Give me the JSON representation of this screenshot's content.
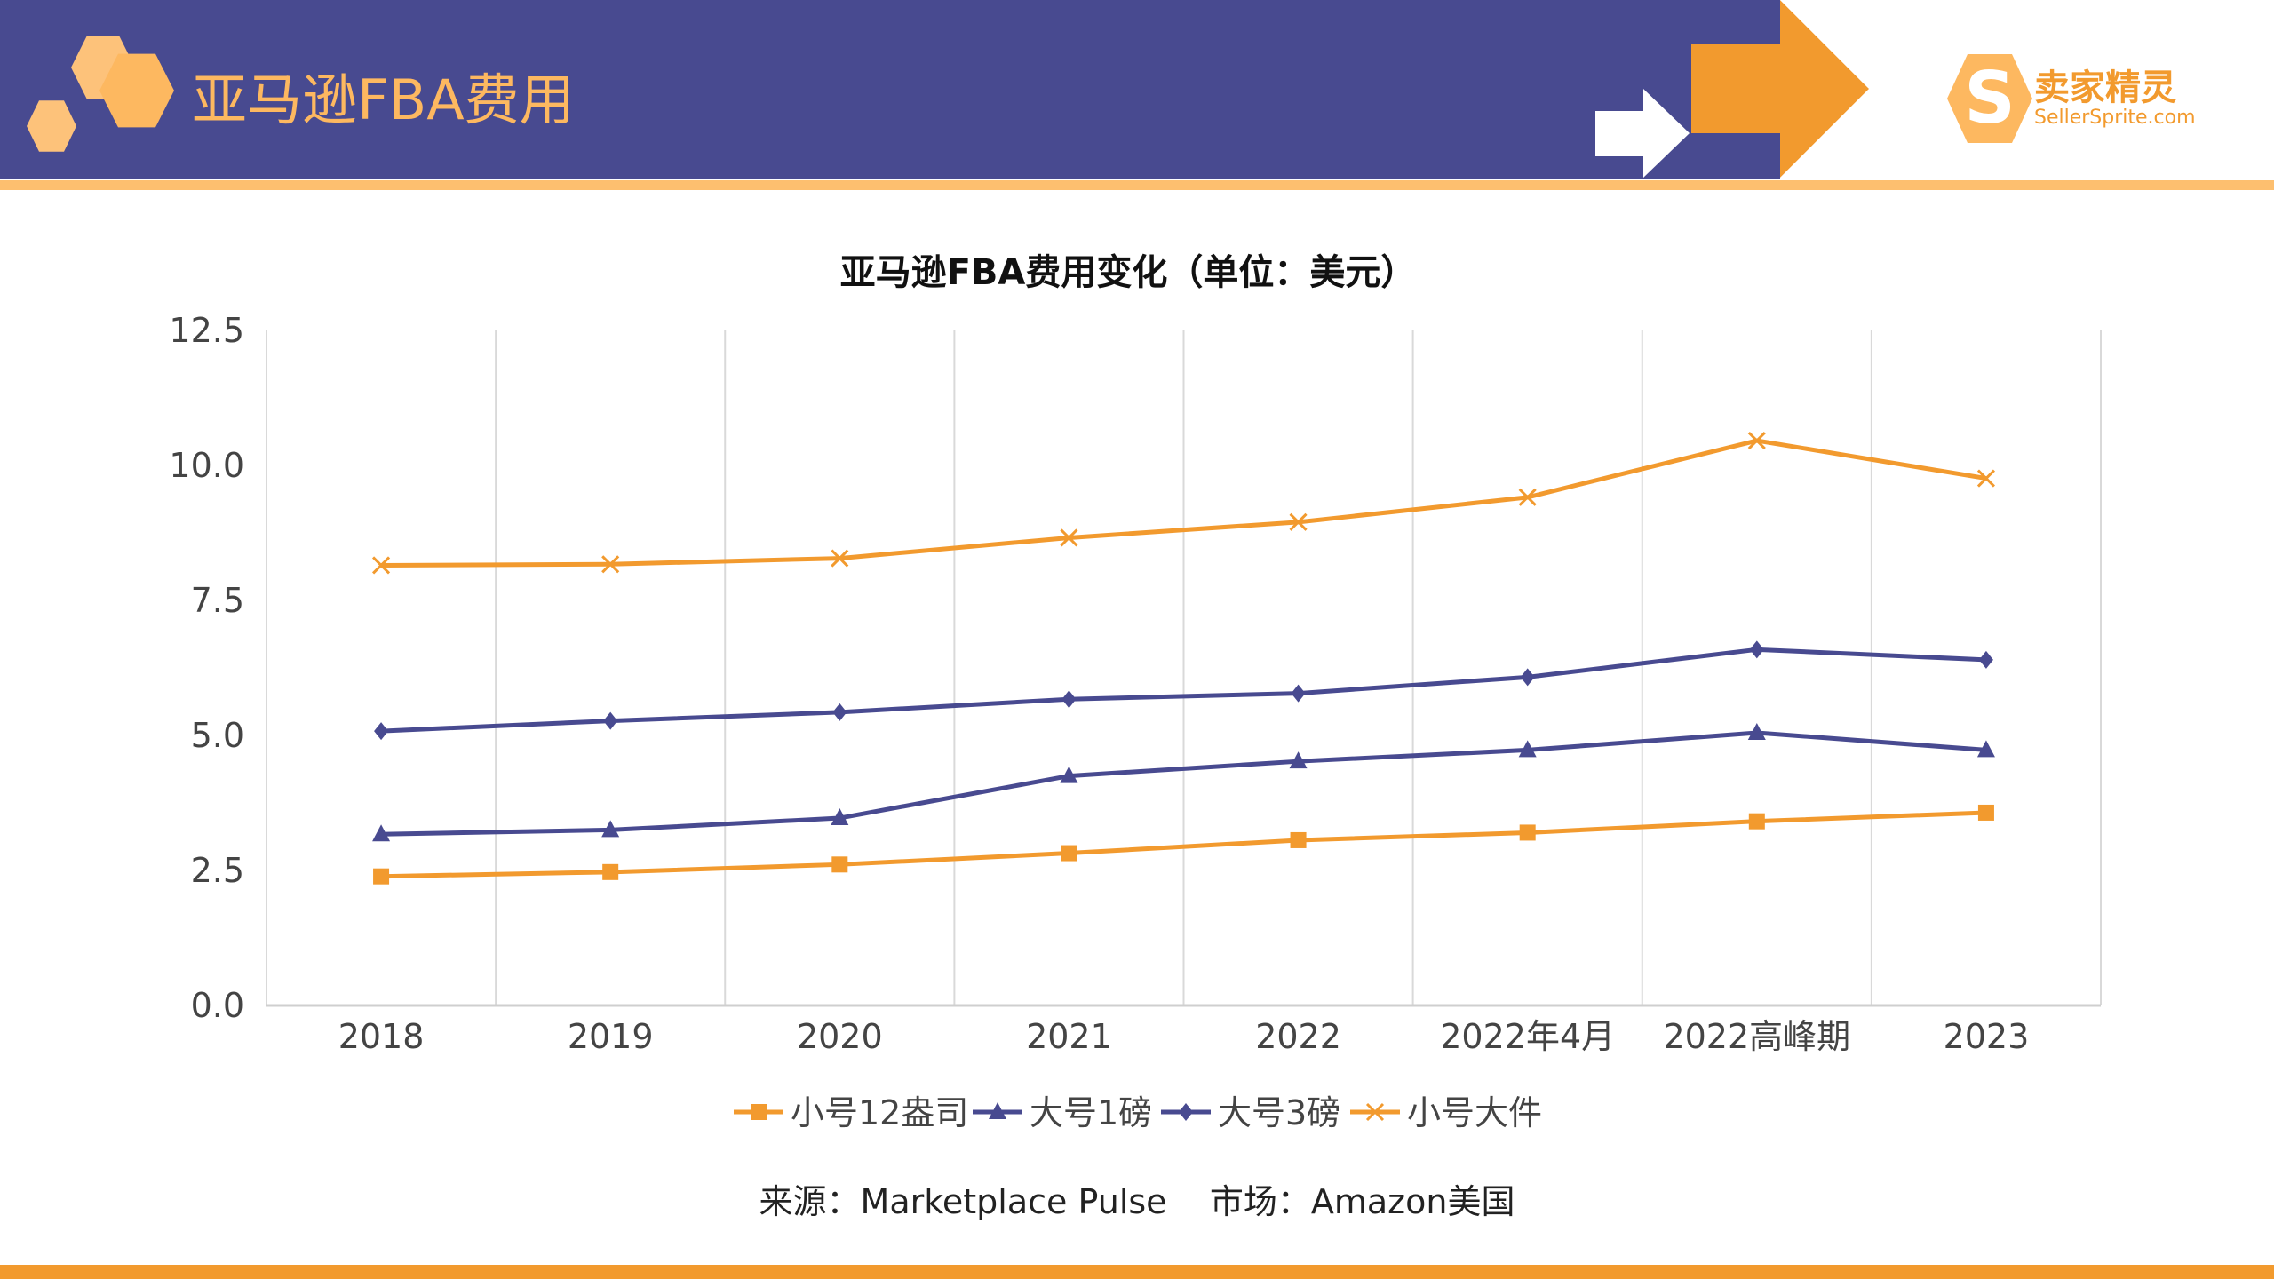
{
  "header": {
    "title": "亚马逊FBA费用",
    "logo_text": "卖家精灵",
    "logo_sub": "SellerSprite.com"
  },
  "colors": {
    "purple": "#484a90",
    "orange": "#f29a2e",
    "light_orange": "#fdbf6f"
  },
  "source": {
    "label": "来源：Marketplace Pulse    市场：Amazon美国"
  },
  "chart_data": {
    "type": "line",
    "title": "亚马逊FBA费用变化（单位：美元）",
    "categories": [
      "2018",
      "2019",
      "2020",
      "2021",
      "2022",
      "2022年4月",
      "2022高峰期",
      "2023"
    ],
    "ylim": [
      0,
      12.5
    ],
    "yticks": [
      "0.0",
      "2.5",
      "5.0",
      "7.5",
      "10.0",
      "12.5"
    ],
    "grid": "vertical",
    "legend": "bottom",
    "series": [
      {
        "name": "小号12盎司",
        "marker": "square",
        "color": "#f29a2e",
        "values": [
          2.39,
          2.47,
          2.61,
          2.82,
          3.06,
          3.2,
          3.41,
          3.57
        ]
      },
      {
        "name": "大号1磅",
        "marker": "triangle",
        "color": "#484a90",
        "values": [
          3.17,
          3.25,
          3.47,
          4.25,
          4.52,
          4.73,
          5.05,
          4.73
        ]
      },
      {
        "name": "大号3磅",
        "marker": "diamond",
        "color": "#484a90",
        "values": [
          5.08,
          5.27,
          5.43,
          5.67,
          5.78,
          6.08,
          6.59,
          6.4
        ]
      },
      {
        "name": "小号大件",
        "marker": "x",
        "color": "#f29a2e",
        "values": [
          8.15,
          8.17,
          8.28,
          8.66,
          8.95,
          9.41,
          10.46,
          9.76
        ]
      }
    ]
  }
}
